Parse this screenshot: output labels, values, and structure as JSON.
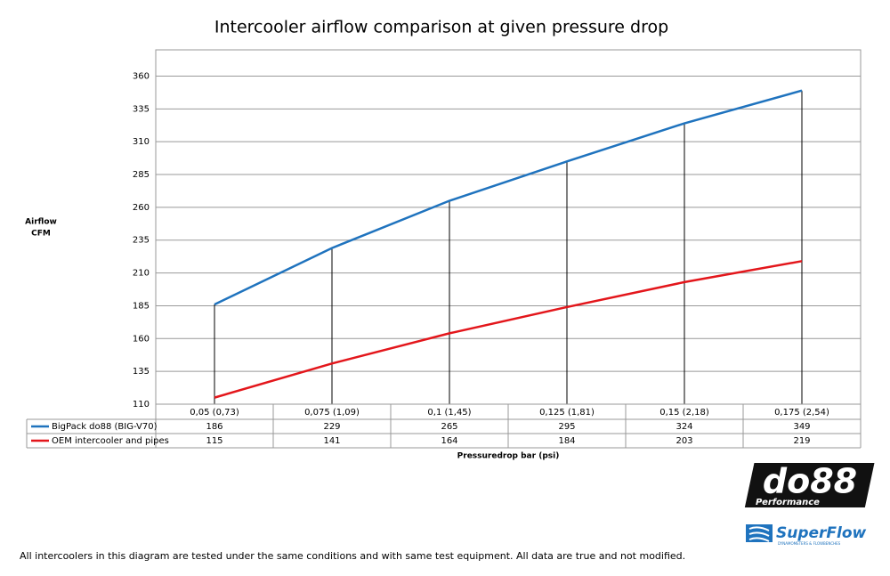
{
  "chart_data": {
    "type": "line",
    "title": "Intercooler airflow comparison at given pressure drop",
    "y_label": [
      "Airflow",
      "CFM"
    ],
    "x_label": "Pressuredrop bar (psi)",
    "categories": [
      "0,05 (0,73)",
      "0,075 (1,09)",
      "0,1 (1,45)",
      "0,125 (1,81)",
      "0,15 (2,18)",
      "0,175 (2,54)"
    ],
    "series": [
      {
        "name": "BigPack do88 (BIG-V70)",
        "color": "#1f73be",
        "values": [
          186,
          229,
          265,
          295,
          324,
          349
        ]
      },
      {
        "name": "OEM intercooler and pipes",
        "color": "#e3161b",
        "values": [
          115,
          141,
          164,
          184,
          203,
          219
        ]
      }
    ],
    "ylim": [
      110,
      380
    ],
    "yticks": [
      110,
      135,
      160,
      185,
      210,
      235,
      260,
      285,
      310,
      335,
      360
    ],
    "grid": true,
    "drop_lines": true,
    "data_table": true
  },
  "footer": "All intercoolers in this diagram are tested under the same conditions and with same test equipment. All data are true and not modified.",
  "logos": {
    "do88": "do88",
    "do88_sub": "Performance",
    "superflow": "SuperFlow",
    "superflow_sub": "DYNAMOMETERS & FLOWBENCHES"
  }
}
